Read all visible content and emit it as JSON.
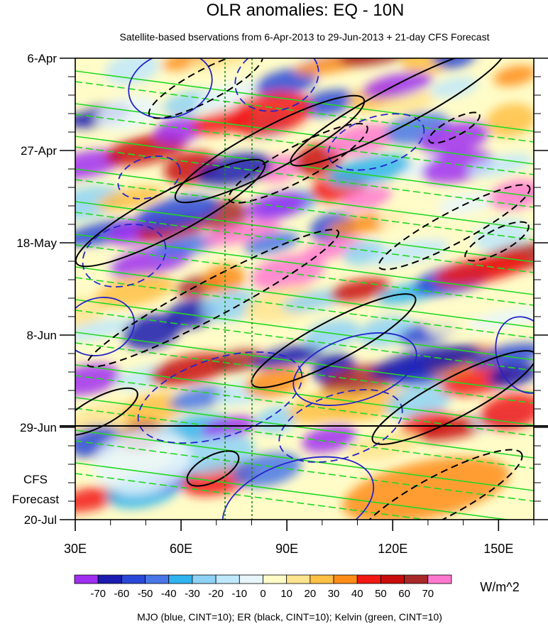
{
  "chart_data": {
    "type": "heatmap",
    "title": "OLR anomalies: EQ - 10N",
    "subtitle": "Satellite-based bservations from 6-Apr-2013 to 29-Jun-2013 + 21-day CFS Forecast",
    "x_axis": {
      "range": [
        30,
        160
      ],
      "ticks": [
        30,
        60,
        90,
        120,
        150
      ],
      "tick_labels": [
        "30E",
        "60E",
        "90E",
        "120E",
        "150E"
      ],
      "minor_step": 10
    },
    "y_axis": {
      "range": [
        "6-Apr-2013",
        "20-Jul-2013"
      ],
      "direction": "time increasing downward",
      "ticks": [
        "6-Apr",
        "27-Apr",
        "18-May",
        "8-Jun",
        "29-Jun",
        "20-Jul"
      ],
      "tick_labels": [
        "6-Apr",
        "27-Apr",
        "18-May",
        "8-Jun",
        "29-Jun",
        "20-Jul"
      ],
      "forecast_label": [
        "CFS",
        "Forecast"
      ]
    },
    "forecast_start": "29-Jun",
    "reference_lines_lon": [
      72.5,
      80
    ],
    "colorbar": {
      "levels": [
        -70,
        -60,
        -50,
        -40,
        -30,
        -20,
        -10,
        0,
        10,
        20,
        30,
        40,
        50,
        60,
        70
      ],
      "tick_labels": [
        "-70",
        "-60",
        "-50",
        "-40",
        "-30",
        "-20",
        "-10",
        "0",
        "10",
        "20",
        "30",
        "40",
        "50",
        "60",
        "70"
      ],
      "colors": [
        "#a02ef0",
        "#1b1bb0",
        "#2a48d8",
        "#4876e8",
        "#2fb4f0",
        "#8ed2f6",
        "#bfe8fc",
        "#e8f6fc",
        "#fffcc8",
        "#ffe490",
        "#ffc044",
        "#ff8c18",
        "#f21814",
        "#c80c0c",
        "#a82828",
        "#ff78d0"
      ],
      "unit": "W/m^2"
    },
    "contours": {
      "MJO": {
        "color": "#2424c8",
        "cint": 10
      },
      "ER": {
        "color": "#000000",
        "cint": 10
      },
      "Kelvin": {
        "color": "#22d822",
        "cint": 10
      }
    },
    "legend_text": "MJO (blue, CINT=10); ER (black, CINT=10); Kelvin (green, CINT=10)",
    "grid": false
  }
}
